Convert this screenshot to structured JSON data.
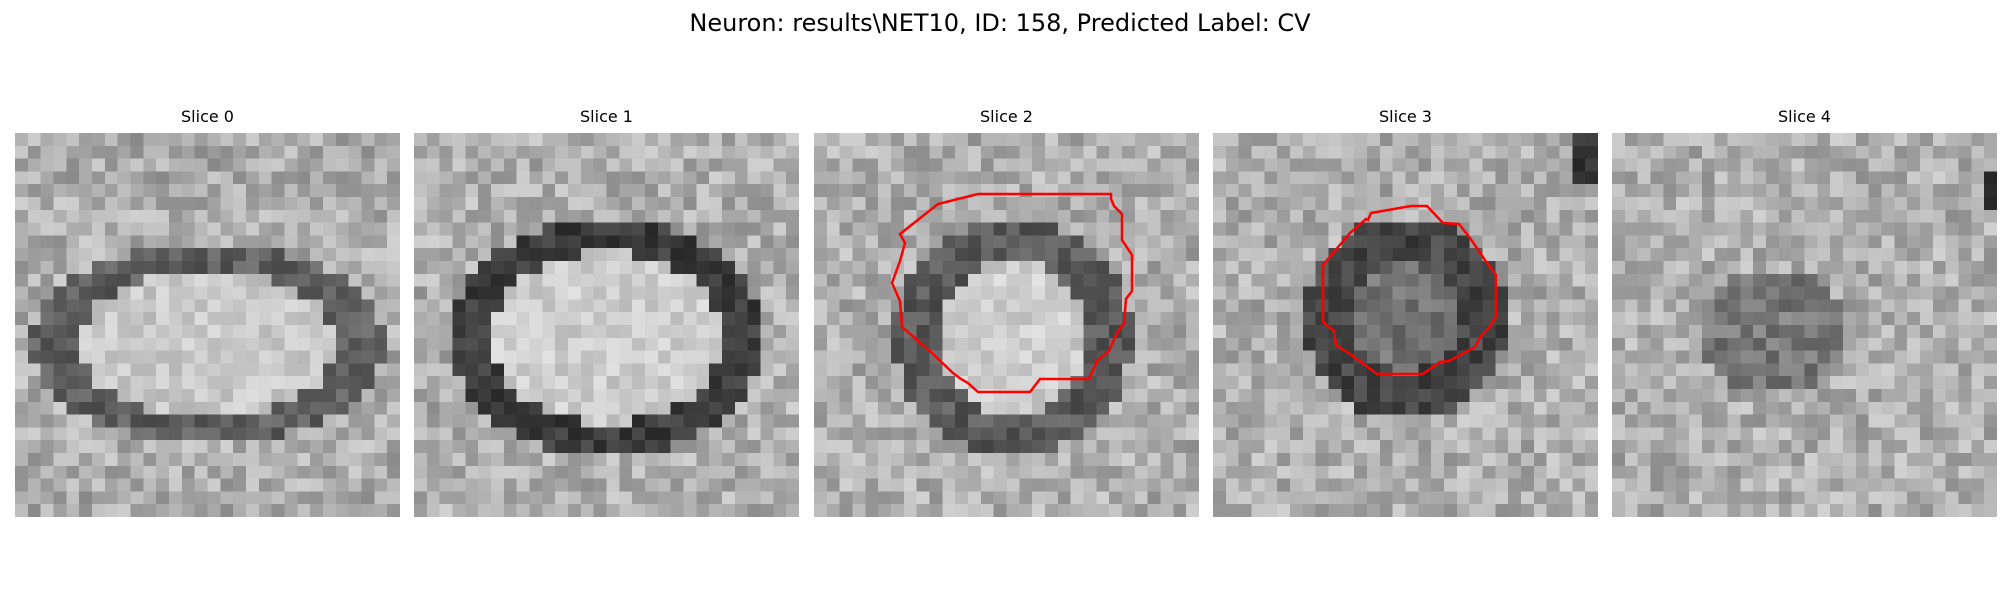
{
  "figure": {
    "title": "Neuron: results\\NET10, ID: 158, Predicted Label: CV"
  },
  "panels": [
    {
      "title": "Slice 0",
      "pattern": "ring-wide",
      "has_contour": false
    },
    {
      "title": "Slice 1",
      "pattern": "ring-dark",
      "has_contour": false
    },
    {
      "title": "Slice 2",
      "pattern": "ring-small",
      "has_contour": true
    },
    {
      "title": "Slice 3",
      "pattern": "dark-blob",
      "has_contour": true
    },
    {
      "title": "Slice 4",
      "pattern": "noise-faint",
      "has_contour": false
    }
  ],
  "colors": {
    "contour": "#ff0000"
  }
}
